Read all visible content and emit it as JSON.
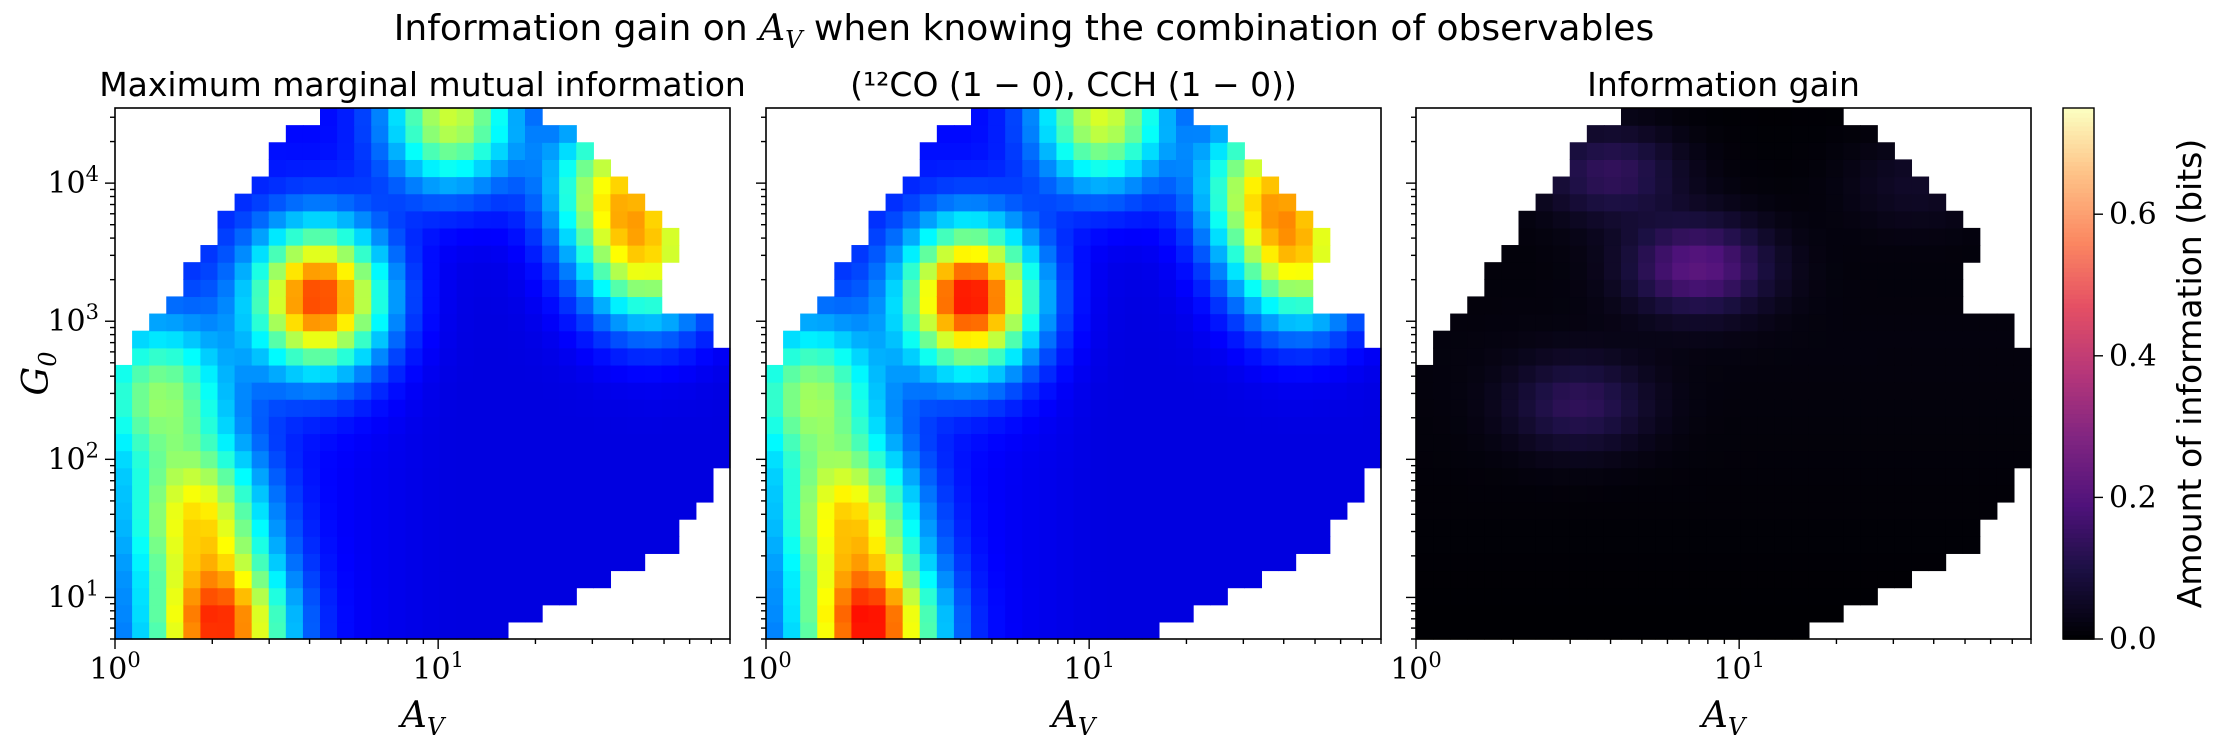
{
  "figure": {
    "suptitle_prefix": "Information gain on",
    "suptitle_var": "A",
    "suptitle_sub": "V",
    "suptitle_suffix": "when knowing the combination of observables"
  },
  "chart_data": [
    {
      "type": "heatmap",
      "title": "Maximum marginal mutual information",
      "xlabel": "A_V",
      "ylabel": "G_0",
      "xscale": "log",
      "yscale": "log",
      "xlim": [
        1,
        80
      ],
      "ylim": [
        5,
        35000
      ],
      "xticks": [
        {
          "base": "10",
          "exp": "0"
        },
        {
          "base": "10",
          "exp": "1"
        }
      ],
      "yticks": [
        {
          "base": "10",
          "exp": "1"
        },
        {
          "base": "10",
          "exp": "2"
        },
        {
          "base": "10",
          "exp": "3"
        },
        {
          "base": "10",
          "exp": "4"
        }
      ],
      "colormap": "jet",
      "color_range": [
        0,
        0.75
      ],
      "blobs": [
        {
          "av": 4.3,
          "g0": 1500,
          "value": 0.52
        },
        {
          "av": 2.1,
          "g0": 6,
          "value": 0.5
        },
        {
          "av": 1.8,
          "g0": 40,
          "value": 0.34
        },
        {
          "av": 11,
          "g0": 30000,
          "value": 0.36
        },
        {
          "av": 35,
          "g0": 10000,
          "value": 0.34
        },
        {
          "av": 45,
          "g0": 2800,
          "value": 0.34
        },
        {
          "av": 1.4,
          "g0": 300,
          "value": 0.26
        }
      ]
    },
    {
      "type": "heatmap",
      "title": "(¹²CO (1 − 0), CCH (1 − 0))",
      "xlabel": "A_V",
      "xscale": "log",
      "yscale": "log",
      "xlim": [
        1,
        80
      ],
      "ylim": [
        5,
        35000
      ],
      "xticks": [
        {
          "base": "10",
          "exp": "0"
        },
        {
          "base": "10",
          "exp": "1"
        }
      ],
      "colormap": "jet",
      "color_range": [
        0,
        0.75
      ],
      "blobs": [
        {
          "av": 4.3,
          "g0": 1500,
          "value": 0.56
        },
        {
          "av": 2.1,
          "g0": 6,
          "value": 0.52
        },
        {
          "av": 1.8,
          "g0": 40,
          "value": 0.35
        },
        {
          "av": 11,
          "g0": 30000,
          "value": 0.37
        },
        {
          "av": 35,
          "g0": 10000,
          "value": 0.35
        },
        {
          "av": 45,
          "g0": 2800,
          "value": 0.35
        },
        {
          "av": 1.4,
          "g0": 300,
          "value": 0.27
        }
      ]
    },
    {
      "type": "heatmap",
      "title": "Information gain",
      "xlabel": "A_V",
      "xscale": "log",
      "yscale": "log",
      "xlim": [
        1,
        80
      ],
      "ylim": [
        5,
        35000
      ],
      "xticks": [
        {
          "base": "10",
          "exp": "0"
        },
        {
          "base": "10",
          "exp": "1"
        }
      ],
      "colormap": "magma",
      "color_range": [
        0,
        0.75
      ],
      "colorbar": {
        "label": "Amount of information (bits)",
        "ticks": [
          "0.0",
          "0.2",
          "0.4",
          "0.6"
        ],
        "tick_values": [
          0,
          0.2,
          0.4,
          0.6
        ]
      },
      "blobs": [
        {
          "av": 7.5,
          "g0": 2500,
          "value": 0.2
        },
        {
          "av": 3.2,
          "g0": 250,
          "value": 0.12
        },
        {
          "av": 4.0,
          "g0": 12000,
          "value": 0.13
        },
        {
          "av": 35,
          "g0": 10000,
          "value": 0.05
        }
      ]
    }
  ]
}
